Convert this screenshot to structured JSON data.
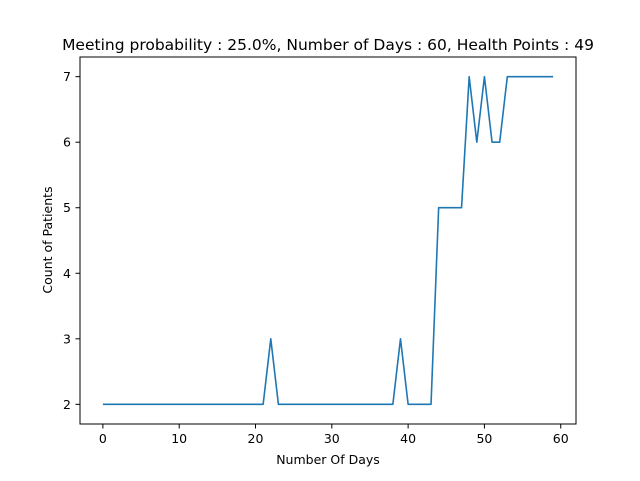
{
  "chart_data": {
    "type": "line",
    "title": "Meeting probability : 25.0%, Number of Days : 60, Health Points : 49",
    "xlabel": "Number Of Days",
    "ylabel": "Count of Patients",
    "xlim": [
      -3,
      62
    ],
    "ylim": [
      1.7,
      7.3
    ],
    "xticks": [
      0,
      10,
      20,
      30,
      40,
      50,
      60
    ],
    "yticks": [
      2,
      3,
      4,
      5,
      6,
      7
    ],
    "grid": false,
    "legend": "none",
    "series": [
      {
        "color": "#1f77b4",
        "x": [
          0,
          1,
          2,
          3,
          4,
          5,
          6,
          7,
          8,
          9,
          10,
          11,
          12,
          13,
          14,
          15,
          16,
          17,
          18,
          19,
          20,
          21,
          22,
          23,
          24,
          25,
          26,
          27,
          28,
          29,
          30,
          31,
          32,
          33,
          34,
          35,
          36,
          37,
          38,
          39,
          40,
          41,
          42,
          43,
          44,
          45,
          46,
          47,
          48,
          49,
          50,
          51,
          52,
          53,
          54,
          55,
          56,
          57,
          58,
          59
        ],
        "y": [
          2,
          2,
          2,
          2,
          2,
          2,
          2,
          2,
          2,
          2,
          2,
          2,
          2,
          2,
          2,
          2,
          2,
          2,
          2,
          2,
          2,
          2,
          3,
          2,
          2,
          2,
          2,
          2,
          2,
          2,
          2,
          2,
          2,
          2,
          2,
          2,
          2,
          2,
          2,
          3,
          2,
          2,
          2,
          2,
          5,
          5,
          5,
          5,
          7,
          6,
          7,
          6,
          6,
          7,
          7,
          7,
          7,
          7,
          7,
          7
        ]
      }
    ]
  }
}
